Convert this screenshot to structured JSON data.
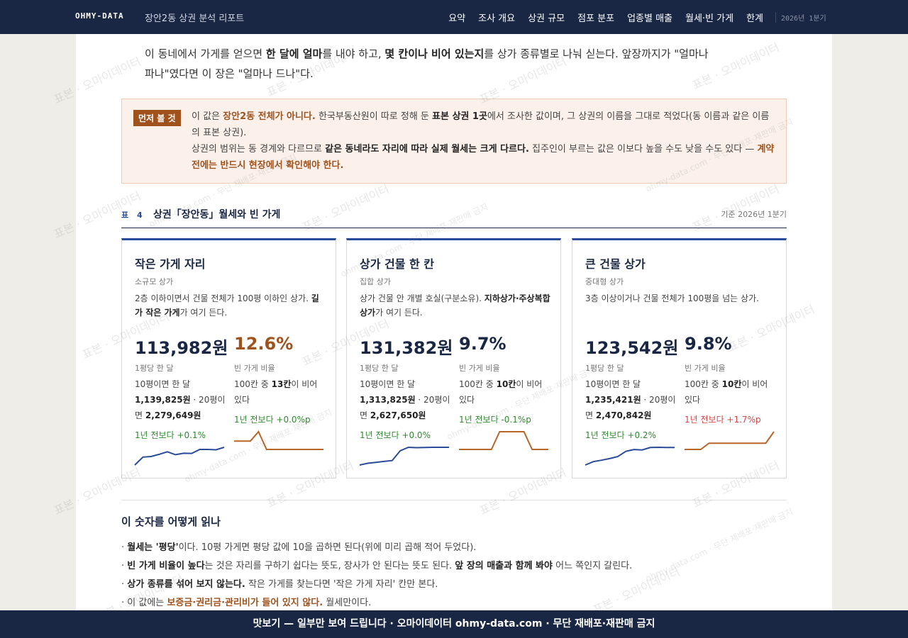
{
  "nav": {
    "brand": "OHMY-DATA",
    "report": "장안2동 상권 분석 리포트",
    "links": [
      "요약",
      "조사 개요",
      "상권 규모",
      "점포 분포",
      "업종별 매출",
      "월세·빈 가게",
      "한계"
    ],
    "period": "2026년 1분기"
  },
  "intro": [
    {
      "text": "이 동네에서 가게를 얻으면 "
    },
    {
      "text": "한 달에 얼마",
      "style": "strong"
    },
    {
      "text": "를 내야 하고, "
    },
    {
      "text": "몇 칸이나 비어 있는지",
      "style": "strong"
    },
    {
      "text": "를 상가 종류별로 나눠 싣는다. 앞장까지가 \"얼마나 파나\"였다면 이 장은 \"얼마나 드나\"다."
    }
  ],
  "notice": {
    "badge": "먼저 볼 것",
    "paragraphs": [
      [
        {
          "text": "이 값은 "
        },
        {
          "text": "장안2동 전체가 아니다.",
          "style": "accent"
        },
        {
          "text": " 한국부동산원이 따로 정해 둔 "
        },
        {
          "text": "표본 상권 1곳",
          "style": "strong"
        },
        {
          "text": "에서 조사한 값이며, 그 상권의 이름을 그대로 적었다(동 이름과 같은 이름의 표본 상권)."
        }
      ],
      [
        {
          "text": "상권의 범위는 동 경계와 다르므로 "
        },
        {
          "text": "같은 동네라도 자리에 따라 실제 월세는 크게 다르다.",
          "style": "strong"
        },
        {
          "text": " 집주인이 부르는 값은 이보다 높을 수도 낮을 수도 있다 — "
        },
        {
          "text": "계약 전에는 반드시 현장에서 확인해야 한다.",
          "style": "accent"
        }
      ]
    ]
  },
  "table_heading": {
    "label": "표 4",
    "title": "상권「장안동」월세와 빈 가게",
    "note": "기준 2026년 1분기"
  },
  "cards": [
    {
      "title": "작은 가게 자리",
      "subtitle": "소규모 상가",
      "description": [
        {
          "text": "2층 이하이면서 건물 전체가 100평 이하인 상가. "
        },
        {
          "text": "길가 작은 가게",
          "style": "strong"
        },
        {
          "text": "가 여기 든다."
        }
      ],
      "rent": {
        "value": "113,982원",
        "caption": "1평당 한 달",
        "detail": [
          {
            "text": "10평이면 한 달 "
          },
          {
            "text": "1,139,825원",
            "style": "strong"
          },
          {
            "text": " · 20평이면 "
          },
          {
            "text": "2,279,649원",
            "style": "strong"
          }
        ],
        "change": "1년 전보다 +0.1%",
        "change_color": "green",
        "trend": [
          104200,
          108600,
          108900,
          110100,
          111500,
          109900,
          110700,
          110600,
          112800,
          112800,
          112600,
          113982
        ]
      },
      "vacancy": {
        "value": "12.6%",
        "highlight": true,
        "caption": "빈 가게 비율",
        "detail": [
          {
            "text": "100칸 중 "
          },
          {
            "text": "13칸",
            "style": "strong"
          },
          {
            "text": "이 비어 있다"
          }
        ],
        "change": "1년 전보다 +0.0%p",
        "change_color": "green",
        "trend": [
          13.5,
          13.5,
          13.5,
          14.5,
          12.6,
          12.6,
          12.6,
          12.6,
          12.6,
          12.6,
          12.6,
          12.6
        ]
      }
    },
    {
      "title": "상가 건물 한 칸",
      "subtitle": "집합 상가",
      "description": [
        {
          "text": "상가 건물 안 개별 호실(구분소유). "
        },
        {
          "text": "지하상가·주상복합 상가",
          "style": "strong"
        },
        {
          "text": "가 여기 든다."
        }
      ],
      "rent": {
        "value": "131,382원",
        "caption": "1평당 한 달",
        "detail": [
          {
            "text": "10평이면 한 달 "
          },
          {
            "text": "1,313,825원",
            "style": "strong"
          },
          {
            "text": " · 20평이면 "
          },
          {
            "text": "2,627,650원",
            "style": "strong"
          }
        ],
        "change": "1년 전보다 +0.0%",
        "change_color": "green",
        "trend": [
          121500,
          122500,
          123000,
          123500,
          124000,
          129500,
          131400,
          131200,
          131300,
          131400,
          131400,
          131382
        ]
      },
      "vacancy": {
        "value": "9.7%",
        "highlight": false,
        "caption": "빈 가게 비율",
        "detail": [
          {
            "text": "100칸 중 "
          },
          {
            "text": "10칸",
            "style": "strong"
          },
          {
            "text": "이 비어 있다"
          }
        ],
        "change": "1년 전보다 -0.1%p",
        "change_color": "green",
        "trend": [
          9.7,
          9.7,
          9.7,
          9.7,
          9.7,
          11.2,
          11.2,
          11.2,
          11.2,
          9.7,
          9.7,
          9.7
        ]
      }
    },
    {
      "title": "큰 건물 상가",
      "subtitle": "중대형 상가",
      "description": [
        {
          "text": "3층 이상이거나 건물 전체가 100평을 넘는 상가."
        }
      ],
      "rent": {
        "value": "123,542원",
        "caption": "1평당 한 달",
        "detail": [
          {
            "text": "10평이면 한 달 "
          },
          {
            "text": "1,235,421원",
            "style": "strong"
          },
          {
            "text": " · 20평이면 "
          },
          {
            "text": "2,470,842원",
            "style": "strong"
          }
        ],
        "change": "1년 전보다 +0.2%",
        "change_color": "green",
        "trend": [
          114800,
          116500,
          117200,
          118000,
          119000,
          121600,
          122500,
          122300,
          123500,
          123600,
          123500,
          123542
        ]
      },
      "vacancy": {
        "value": "9.8%",
        "highlight": false,
        "caption": "빈 가게 비율",
        "detail": [
          {
            "text": "100칸 중 "
          },
          {
            "text": "10칸",
            "style": "strong"
          },
          {
            "text": "이 비어 있다"
          }
        ],
        "change": "1년 전보다 +1.7%p",
        "change_color": "red",
        "trend": [
          8.1,
          8.1,
          8.1,
          8.7,
          8.7,
          8.7,
          8.7,
          8.7,
          8.7,
          8.7,
          8.7,
          9.8
        ]
      }
    }
  ],
  "explainer": {
    "title": "이 숫자를 어떻게 읽나",
    "bullets": [
      [
        {
          "text": "· "
        },
        {
          "text": "월세는 '평당'",
          "style": "strong"
        },
        {
          "text": "이다. 10평 가게면 평당 값에 10을 곱하면 된다(위에 미리 곱해 적어 두었다)."
        }
      ],
      [
        {
          "text": "· "
        },
        {
          "text": "빈 가게 비율이 높다",
          "style": "strong"
        },
        {
          "text": "는 것은 자리를 구하기 쉽다는 뜻도, 장사가 안 된다는 뜻도 된다. "
        },
        {
          "text": "앞 장의 매출과 함께 봐야",
          "style": "strong"
        },
        {
          "text": " 어느 쪽인지 갈린다."
        }
      ],
      [
        {
          "text": "· "
        },
        {
          "text": "상가 종류를 섞어 보지 않는다.",
          "style": "strong"
        },
        {
          "text": " 작은 가게를 찾는다면 '작은 가게 자리' 칸만 본다."
        }
      ],
      [
        {
          "text": "· 이 값에는 "
        },
        {
          "text": "보증금·권리금·관리비가 들어 있지 않다.",
          "style": "accent"
        },
        {
          "text": " 월세만이다."
        }
      ]
    ]
  },
  "watermark": {
    "primary": "표본 · 오마이데이터",
    "secondary": "ohmy-data.com · 무단 재배포·재판매 금지"
  },
  "footer": "맛보기 — 일부만 보여 드립니다 · 오마이데이터 ohmy-data.com · 무단 재배포·재판매 금지"
}
